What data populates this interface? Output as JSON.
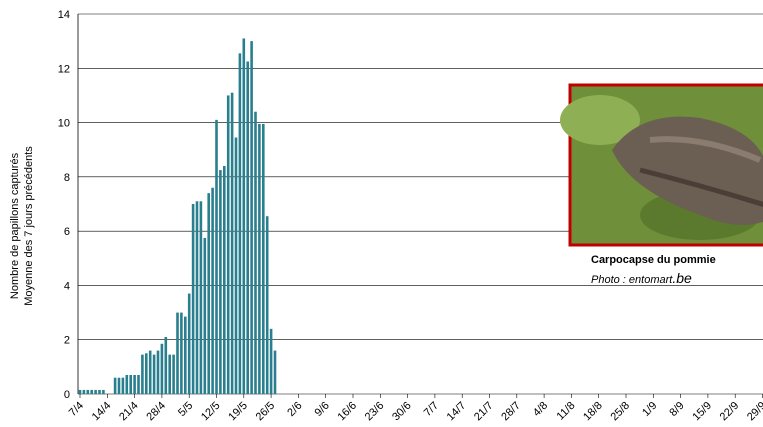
{
  "chart_data": {
    "type": "bar",
    "y_label": [
      "Nombre de papillons capturés",
      "Moyenne des 7 jours précédents"
    ],
    "categories": [
      "7/4",
      null,
      null,
      null,
      null,
      null,
      null,
      "14/4",
      null,
      null,
      null,
      null,
      null,
      null,
      "21/4",
      null,
      null,
      null,
      null,
      null,
      null,
      "28/4",
      null,
      null,
      null,
      null,
      null,
      null,
      "5/5",
      null,
      null,
      null,
      null,
      null,
      null,
      "12/5",
      null,
      null,
      null,
      null,
      null,
      null,
      "19/5",
      null,
      null,
      null,
      null,
      null,
      null,
      "26/5",
      null,
      null,
      null,
      null,
      null,
      null,
      "2/6",
      null,
      null,
      null,
      null,
      null,
      null,
      "9/6",
      null,
      null,
      null,
      null,
      null,
      null,
      "16/6",
      null,
      null,
      null,
      null,
      null,
      null,
      "23/6",
      null,
      null,
      null,
      null,
      null,
      null,
      "30/6",
      null,
      null,
      null,
      null,
      null,
      null,
      "7/7",
      null,
      null,
      null,
      null,
      null,
      null,
      "14/7",
      null,
      null,
      null,
      null,
      null,
      null,
      "21/7",
      null,
      null,
      null,
      null,
      null,
      null,
      "28/7",
      null,
      null,
      null,
      null,
      null,
      null,
      "4/8",
      null,
      null,
      null,
      null,
      null,
      null,
      "11/8",
      null,
      null,
      null,
      null,
      null,
      null,
      "18/8",
      null,
      null,
      null,
      null,
      null,
      null,
      "25/8",
      null,
      null,
      null,
      null,
      null,
      null,
      "1/9",
      null,
      null,
      null,
      null,
      null,
      null,
      "8/9",
      null,
      null,
      null,
      null,
      null,
      null,
      "15/9",
      null,
      null,
      null,
      null,
      null,
      null,
      "22/9",
      null,
      null,
      null,
      null,
      null,
      null,
      "29/9"
    ],
    "values": [
      0.15,
      0.15,
      0.15,
      0.15,
      0.15,
      0.15,
      0.15,
      0,
      0,
      0.6,
      0.6,
      0.6,
      0.7,
      0.7,
      0.7,
      0.7,
      1.45,
      1.5,
      1.6,
      1.45,
      1.6,
      1.85,
      2.1,
      1.45,
      1.45,
      3.0,
      3.0,
      2.85,
      3.7,
      7.0,
      7.1,
      7.1,
      5.75,
      7.4,
      7.6,
      10.1,
      8.25,
      8.4,
      11.0,
      11.1,
      9.45,
      12.55,
      13.1,
      12.25,
      13.0,
      10.4,
      9.95,
      9.95,
      6.55,
      2.4,
      1.6,
      null,
      null,
      null,
      null,
      null,
      null,
      null,
      null,
      null,
      null,
      null,
      null,
      null,
      null,
      null,
      null,
      null,
      null,
      null,
      null,
      null,
      null,
      null,
      null,
      null,
      null,
      null,
      null,
      null,
      null,
      null,
      null,
      null,
      null,
      null,
      null,
      null,
      null,
      null,
      null,
      null,
      null,
      null,
      null,
      null,
      null,
      null,
      null,
      null,
      null,
      null,
      null,
      null,
      null,
      null,
      null,
      null,
      null,
      null,
      null,
      null,
      null,
      null,
      null,
      null,
      null,
      null,
      null,
      null,
      null,
      null,
      null,
      null,
      null,
      null,
      null,
      null,
      null,
      null,
      null,
      null,
      null,
      null,
      null,
      null,
      null,
      null,
      null,
      null,
      null,
      null,
      null,
      null,
      null,
      null,
      null,
      null,
      null,
      null,
      null,
      null,
      null,
      null,
      null,
      null,
      null,
      null,
      null,
      null,
      null,
      null,
      null,
      null,
      null,
      null,
      null,
      null,
      null,
      null,
      null,
      null,
      null,
      null,
      null,
      null
    ],
    "color": "#2a7f8f",
    "ylim": [
      0,
      14
    ],
    "yticks": [
      0,
      2,
      4,
      6,
      8,
      10,
      12,
      14
    ],
    "grid": true,
    "photo_caption": "Carpocapse du pommie",
    "photo_credit": "Photo : entomart",
    "photo_credit_suffix": ".be"
  }
}
